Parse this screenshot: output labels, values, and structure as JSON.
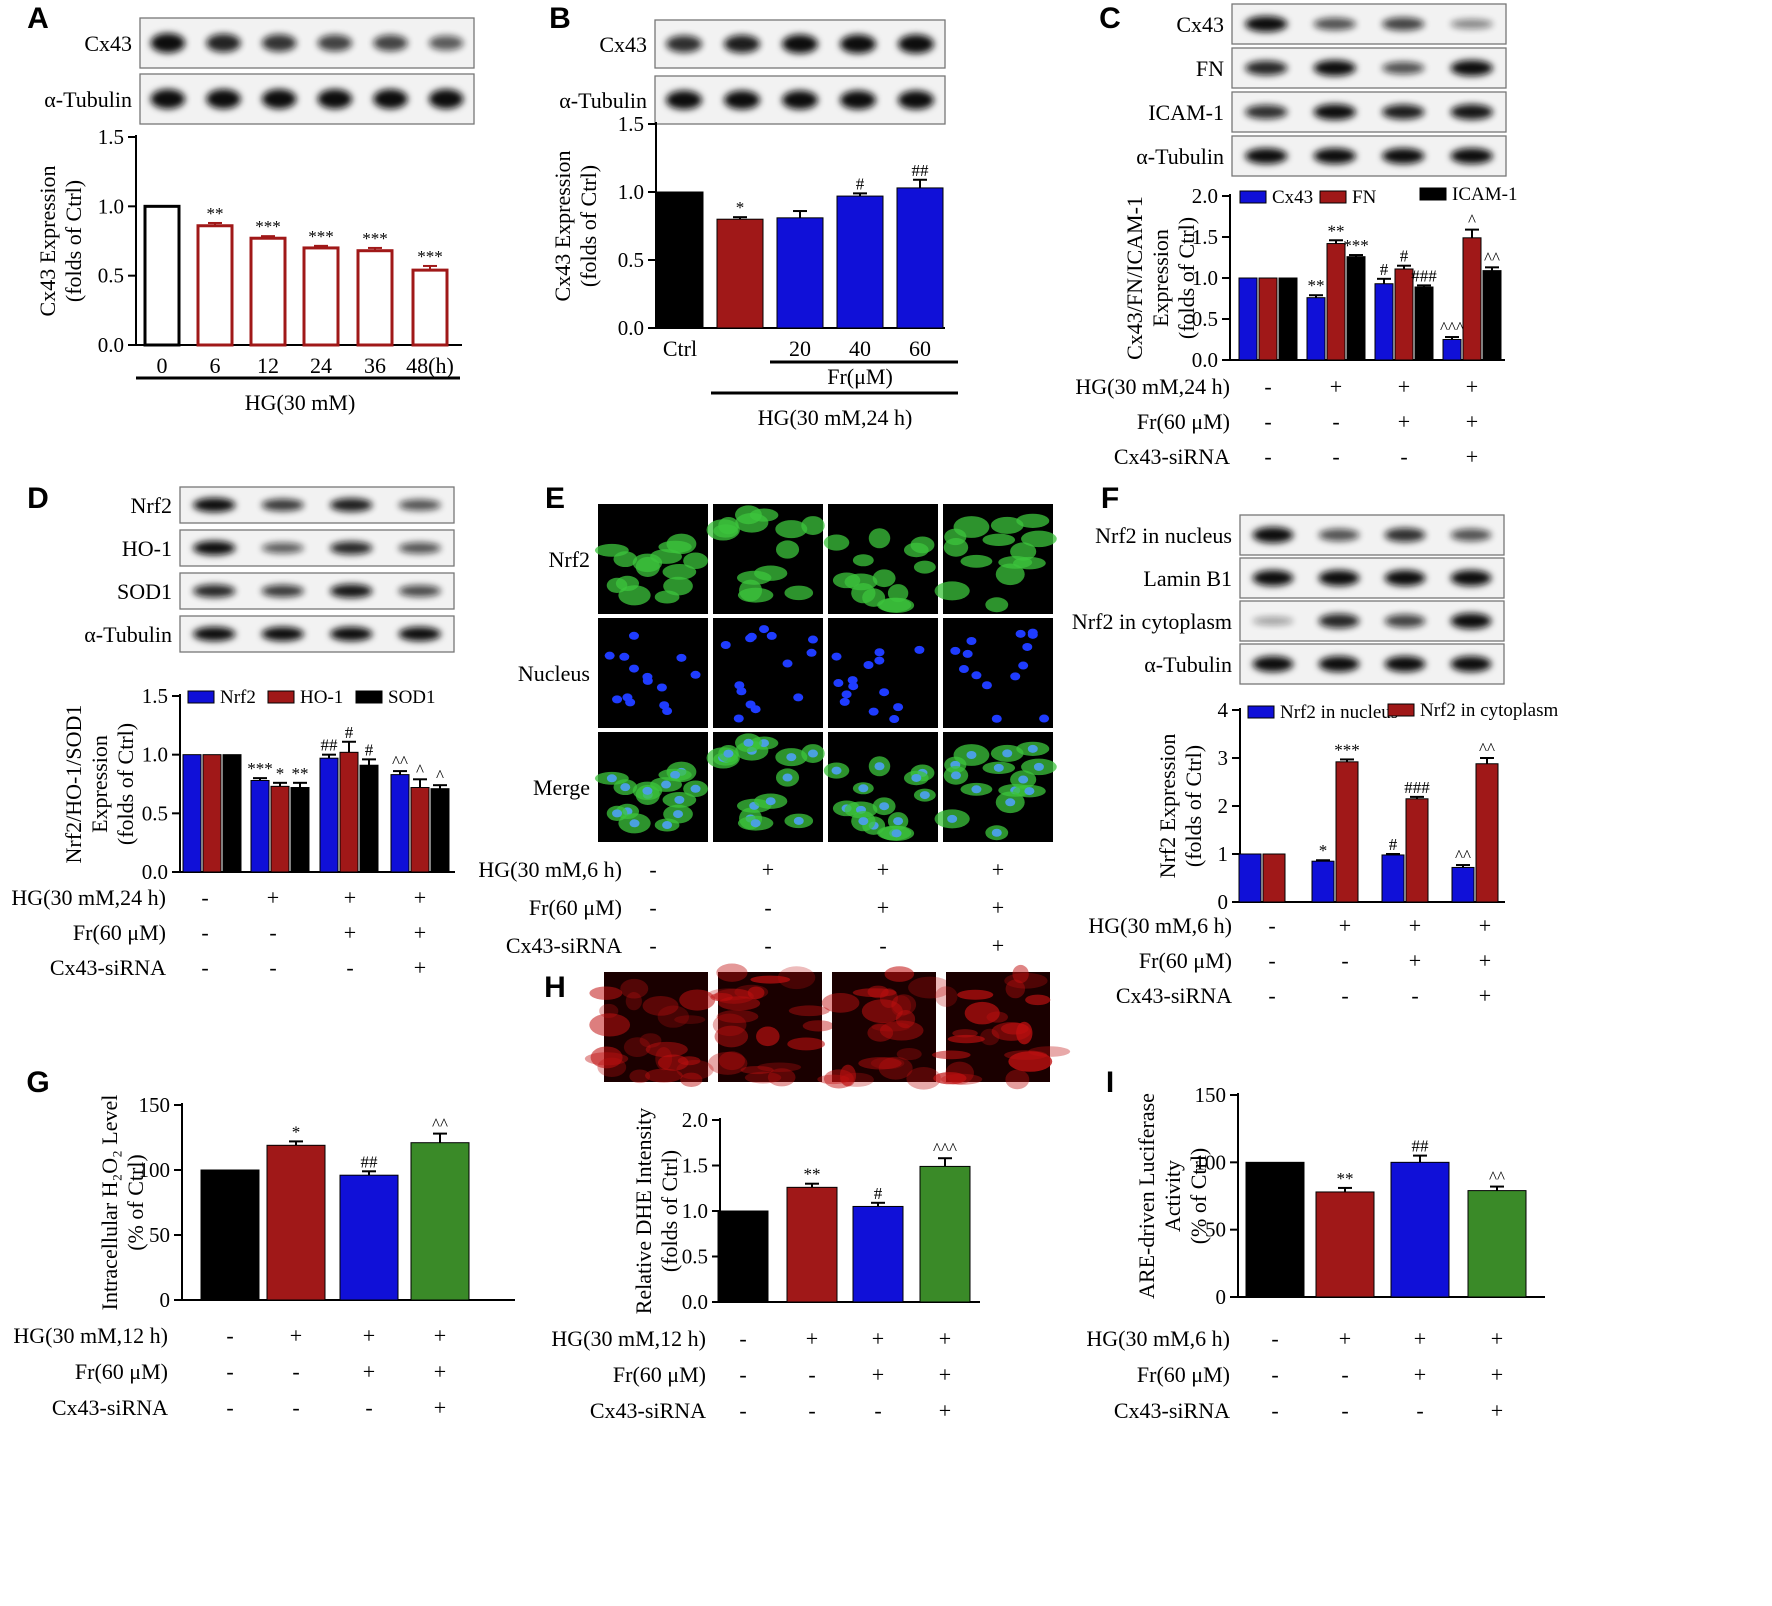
{
  "panels": {
    "A": {
      "letter": "A",
      "blot_labels": [
        "Cx43",
        "α-Tubulin"
      ],
      "bands": [
        [
          1.0,
          0.86,
          0.77,
          0.7,
          0.68,
          0.54
        ],
        [
          1,
          1,
          1,
          1,
          1,
          1
        ]
      ]
    },
    "B": {
      "letter": "B",
      "blot_labels": [
        "Cx43",
        "α-Tubulin"
      ],
      "bands": [
        [
          0.8,
          0.9,
          1.0,
          1.0,
          1.0
        ],
        [
          1,
          1,
          1,
          1,
          1
        ]
      ],
      "treatment_line_label": "Fr(μM)",
      "bottom_label": "HG(30 mM,24 h)"
    },
    "C": {
      "letter": "C",
      "blot_labels": [
        "Cx43",
        "FN",
        "ICAM-1",
        "α-Tubulin"
      ],
      "bands": [
        [
          1.0,
          0.6,
          0.7,
          0.3
        ],
        [
          0.85,
          1.0,
          0.6,
          1.0
        ],
        [
          0.8,
          1.0,
          0.9,
          0.95
        ],
        [
          1,
          1,
          1,
          1
        ]
      ]
    },
    "D": {
      "letter": "D",
      "blot_labels": [
        "Nrf2",
        "HO-1",
        "SOD1",
        "α-Tubulin"
      ],
      "bands": [
        [
          1.0,
          0.75,
          0.9,
          0.6
        ],
        [
          1.0,
          0.55,
          0.85,
          0.6
        ],
        [
          0.85,
          0.75,
          0.95,
          0.65
        ],
        [
          1,
          1,
          1,
          1
        ]
      ]
    },
    "E": {
      "letter": "E",
      "row_labels": [
        "Nrf2",
        "Nucleus",
        "Merge"
      ],
      "treatment_rows": [
        {
          "label": "HG(30 mM,6 h)",
          "marks": [
            "-",
            "+",
            "+",
            "+"
          ]
        },
        {
          "label": "Fr(60 μM)",
          "marks": [
            "-",
            "-",
            "+",
            "+"
          ]
        },
        {
          "label": "Cx43-siRNA",
          "marks": [
            "-",
            "-",
            "-",
            "+"
          ]
        }
      ]
    },
    "F": {
      "letter": "F",
      "blot_labels": [
        "Nrf2 in nucleus",
        "Lamin B1",
        "Nrf2 in cytoplasm",
        "α-Tubulin"
      ],
      "bands": [
        [
          1.0,
          0.6,
          0.8,
          0.6
        ],
        [
          1,
          1,
          1,
          1
        ],
        [
          0.15,
          0.85,
          0.7,
          1.0
        ],
        [
          1,
          1,
          1,
          1
        ]
      ]
    },
    "G": {
      "letter": "G"
    },
    "H": {
      "letter": "H",
      "image_intensity": [
        0.55,
        0.75,
        0.65,
        0.9
      ]
    },
    "I": {
      "letter": "I"
    }
  },
  "colors": {
    "black": "#000000",
    "red": "#a01818",
    "blue": "#1010d8",
    "green": "#3a8a28",
    "hollow_edge": "#a01818",
    "ctrl_hollow": "#000000",
    "sig": "#000000"
  },
  "chart_data": [
    {
      "id": "A",
      "type": "bar",
      "categories": [
        "0",
        "6",
        "12",
        "24",
        "36",
        "48(h)"
      ],
      "values": [
        1.0,
        0.86,
        0.77,
        0.7,
        0.68,
        0.54
      ],
      "errors": [
        0,
        0.02,
        0.015,
        0.015,
        0.02,
        0.03
      ],
      "sig": [
        "",
        "**",
        "***",
        "***",
        "***",
        "***"
      ],
      "ylabel": [
        "Cx43 Expression",
        "(folds of Ctrl)"
      ],
      "ylim": [
        0,
        1.5
      ],
      "yticks": [
        "0.0",
        "0.5",
        "1.0",
        "1.5"
      ],
      "group_label": "HG(30 mM)"
    },
    {
      "id": "B",
      "type": "bar",
      "categories": [
        "Ctrl",
        "",
        "20",
        "40",
        "60"
      ],
      "values": [
        1.0,
        0.8,
        0.81,
        0.97,
        1.03
      ],
      "errors": [
        0,
        0.015,
        0.05,
        0.02,
        0.06
      ],
      "sig": [
        "",
        "*",
        "",
        "#",
        "##"
      ],
      "ylabel": [
        "Cx43 Expression",
        "(folds of Ctrl)"
      ],
      "ylim": [
        0,
        1.5
      ],
      "yticks": [
        "0.0",
        "0.5",
        "1.0",
        "1.5"
      ]
    },
    {
      "id": "C",
      "type": "bar",
      "series": [
        {
          "name": "Cx43",
          "values": [
            1.0,
            0.76,
            0.93,
            0.25
          ],
          "errors": [
            0,
            0.03,
            0.06,
            0.03
          ],
          "sig": [
            "",
            "**",
            "#",
            "^^^"
          ]
        },
        {
          "name": "FN",
          "values": [
            1.0,
            1.42,
            1.11,
            1.49
          ],
          "errors": [
            0,
            0.04,
            0.04,
            0.1
          ],
          "sig": [
            "",
            "**",
            "#",
            "^"
          ]
        },
        {
          "name": "ICAM-1",
          "values": [
            1.0,
            1.26,
            0.89,
            1.09
          ],
          "errors": [
            0,
            0.02,
            0.02,
            0.04
          ],
          "sig": [
            "",
            "***",
            "###",
            "^^"
          ]
        }
      ],
      "ylabel": [
        "Cx43/FN/ICAM-1",
        "Expression",
        "(folds of Ctrl)"
      ],
      "ylim": [
        0,
        2.0
      ],
      "yticks": [
        "0.0",
        "0.5",
        "1.0",
        "1.5",
        "2.0"
      ],
      "treatments": [
        {
          "label": "HG(30 mM,24 h)",
          "marks": [
            "-",
            "+",
            "+",
            "+"
          ]
        },
        {
          "label": "Fr(60 μM)",
          "marks": [
            "-",
            "-",
            "+",
            "+"
          ]
        },
        {
          "label": "Cx43-siRNA",
          "marks": [
            "-",
            "-",
            "-",
            "+"
          ]
        }
      ]
    },
    {
      "id": "D",
      "type": "bar",
      "series": [
        {
          "name": "Nrf2",
          "values": [
            1.0,
            0.78,
            0.97,
            0.83
          ],
          "errors": [
            0,
            0.02,
            0.03,
            0.03
          ],
          "sig": [
            "",
            "***",
            "##",
            "^^"
          ]
        },
        {
          "name": "HO-1",
          "values": [
            1.0,
            0.73,
            1.02,
            0.72
          ],
          "errors": [
            0,
            0.03,
            0.09,
            0.07
          ],
          "sig": [
            "",
            "*",
            "#",
            "^"
          ]
        },
        {
          "name": "SOD1",
          "values": [
            1.0,
            0.72,
            0.91,
            0.71
          ],
          "errors": [
            0,
            0.04,
            0.05,
            0.03
          ],
          "sig": [
            "",
            "**",
            "#",
            "^"
          ]
        }
      ],
      "ylabel": [
        "Nrf2/HO-1/SOD1",
        "Expression",
        "(folds of Ctrl)"
      ],
      "ylim": [
        0,
        1.5
      ],
      "yticks": [
        "0.0",
        "0.5",
        "1.0",
        "1.5"
      ],
      "treatments": [
        {
          "label": "HG(30 mM,24 h)",
          "marks": [
            "-",
            "+",
            "+",
            "+"
          ]
        },
        {
          "label": "Fr(60 μM)",
          "marks": [
            "-",
            "-",
            "+",
            "+"
          ]
        },
        {
          "label": "Cx43-siRNA",
          "marks": [
            "-",
            "-",
            "-",
            "+"
          ]
        }
      ]
    },
    {
      "id": "F",
      "type": "bar",
      "series": [
        {
          "name": "Nrf2 in nucleus",
          "values": [
            1.0,
            0.85,
            0.98,
            0.72
          ],
          "errors": [
            0,
            0.02,
            0.02,
            0.05
          ],
          "sig": [
            "",
            "*",
            "#",
            "^^"
          ]
        },
        {
          "name": "Nrf2 in cytoplasm",
          "values": [
            1.0,
            2.92,
            2.15,
            2.88
          ],
          "errors": [
            0,
            0.05,
            0.04,
            0.12
          ],
          "sig": [
            "",
            "***",
            "###",
            "^^"
          ]
        }
      ],
      "ylabel": [
        "Nrf2 Expression",
        "(folds of Ctrl)"
      ],
      "ylim": [
        0,
        4
      ],
      "yticks": [
        "0",
        "1",
        "2",
        "3",
        "4"
      ],
      "treatments": [
        {
          "label": "HG(30 mM,6 h)",
          "marks": [
            "-",
            "+",
            "+",
            "+"
          ]
        },
        {
          "label": "Fr(60 μM)",
          "marks": [
            "-",
            "-",
            "+",
            "+"
          ]
        },
        {
          "label": "Cx43-siRNA",
          "marks": [
            "-",
            "-",
            "-",
            "+"
          ]
        }
      ]
    },
    {
      "id": "G",
      "type": "bar",
      "values": [
        100,
        119,
        96,
        121
      ],
      "errors": [
        0,
        3,
        3,
        7
      ],
      "sig": [
        "",
        "*",
        "##",
        "^^"
      ],
      "ylabel": [
        "Intracellular H₂O₂ Level",
        "(% of Ctrl)"
      ],
      "ylim": [
        0,
        150
      ],
      "yticks": [
        "0",
        "50",
        "100",
        "150"
      ],
      "treatments": [
        {
          "label": "HG(30 mM,12 h)",
          "marks": [
            "-",
            "+",
            "+",
            "+"
          ]
        },
        {
          "label": "Fr(60 μM)",
          "marks": [
            "-",
            "-",
            "+",
            "+"
          ]
        },
        {
          "label": "Cx43-siRNA",
          "marks": [
            "-",
            "-",
            "-",
            "+"
          ]
        }
      ]
    },
    {
      "id": "H",
      "type": "bar",
      "values": [
        1.0,
        1.26,
        1.05,
        1.49
      ],
      "errors": [
        0,
        0.04,
        0.04,
        0.09
      ],
      "sig": [
        "",
        "**",
        "#",
        "^^^"
      ],
      "ylabel": [
        "Relative DHE Intensity",
        "(folds of Ctrl)"
      ],
      "ylim": [
        0,
        2.0
      ],
      "yticks": [
        "0.0",
        "0.5",
        "1.0",
        "1.5",
        "2.0"
      ],
      "treatments": [
        {
          "label": "HG(30 mM,12 h)",
          "marks": [
            "-",
            "+",
            "+",
            "+"
          ]
        },
        {
          "label": "Fr(60 μM)",
          "marks": [
            "-",
            "-",
            "+",
            "+"
          ]
        },
        {
          "label": "Cx43-siRNA",
          "marks": [
            "-",
            "-",
            "-",
            "+"
          ]
        }
      ]
    },
    {
      "id": "I",
      "type": "bar",
      "values": [
        100,
        78,
        100,
        79
      ],
      "errors": [
        0,
        3,
        5,
        3
      ],
      "sig": [
        "",
        "**",
        "##",
        "^^"
      ],
      "ylabel": [
        "ARE-driven Luciferase",
        "Activity",
        "(% of Ctrl)"
      ],
      "ylim": [
        0,
        150
      ],
      "yticks": [
        "0",
        "50",
        "100",
        "150"
      ],
      "treatments": [
        {
          "label": "HG(30 mM,6 h)",
          "marks": [
            "-",
            "+",
            "+",
            "+"
          ]
        },
        {
          "label": "Fr(60 μM)",
          "marks": [
            "-",
            "-",
            "+",
            "+"
          ]
        },
        {
          "label": "Cx43-siRNA",
          "marks": [
            "-",
            "-",
            "-",
            "+"
          ]
        }
      ]
    }
  ]
}
